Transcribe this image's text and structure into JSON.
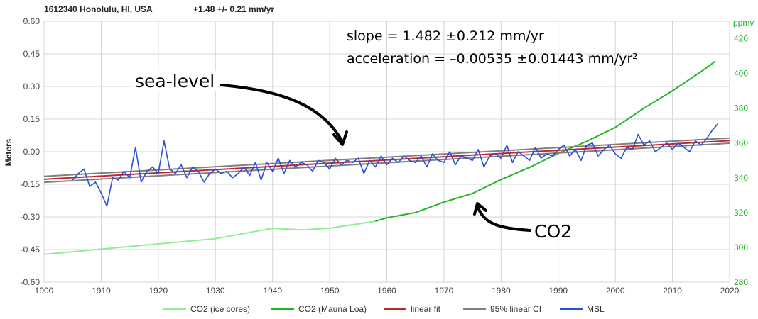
{
  "header": {
    "station": "1612340 Honolulu, HI, USA",
    "trend": "+1.48 +/- 0.21 mm/yr"
  },
  "annotations": {
    "slope": "slope = 1.482 ±0.212 mm/yr",
    "acceleration": "acceleration = –0.00535 ±0.01443 mm/yr²",
    "sea_level": "sea-level",
    "co2": "CO2"
  },
  "legend": [
    {
      "label": "CO2 (ice cores)",
      "color": "#90ee90"
    },
    {
      "label": "CO2 (Mauna Loa)",
      "color": "#22b822"
    },
    {
      "label": "linear fit",
      "color": "#c0282d"
    },
    {
      "label": "95% linear CI",
      "color": "#808080"
    },
    {
      "label": "MSL",
      "color": "#2a4fd8"
    }
  ],
  "chart_data": {
    "type": "line",
    "xlabel": "",
    "ylabel": "Meters",
    "y2label": "ppmv",
    "xlim": [
      1900,
      2020
    ],
    "ylim": [
      -0.6,
      0.6
    ],
    "y2lim": [
      280,
      430
    ],
    "xticks": [
      "1900",
      "1910",
      "1920",
      "1930",
      "1940",
      "1950",
      "1960",
      "1970",
      "1980",
      "1990",
      "2000",
      "2010",
      "2020"
    ],
    "yticks": [
      "0.60",
      "0.45",
      "0.30",
      "0.15",
      "0.00",
      "-0.15",
      "-0.30",
      "-0.45",
      "-0.60"
    ],
    "y2ticks": [
      "280",
      "300",
      "320",
      "340",
      "360",
      "380",
      "400",
      "420"
    ],
    "grid": true,
    "legend_position": "bottom",
    "series": [
      {
        "name": "MSL",
        "axis": "left",
        "color": "#2a4fd8",
        "x": [
          1905.0,
          1906.0,
          1907.0,
          1908.0,
          1909.0,
          1910.0,
          1911.0,
          1912.0,
          1913.0,
          1914.0,
          1915.0,
          1916.0,
          1917.0,
          1918.0,
          1919.0,
          1920.0,
          1921.0,
          1922.0,
          1923.0,
          1924.0,
          1925.0,
          1926.0,
          1927.0,
          1928.0,
          1929.0,
          1930.0,
          1931.0,
          1932.0,
          1933.0,
          1934.0,
          1935.0,
          1936.0,
          1937.0,
          1938.0,
          1939.0,
          1940.0,
          1941.0,
          1942.0,
          1943.0,
          1944.0,
          1945.0,
          1946.0,
          1947.0,
          1948.0,
          1949.0,
          1950.0,
          1951.0,
          1952.0,
          1953.0,
          1954.0,
          1955.0,
          1956.0,
          1957.0,
          1958.0,
          1959.0,
          1960.0,
          1961.0,
          1962.0,
          1963.0,
          1964.0,
          1965.0,
          1966.0,
          1967.0,
          1968.0,
          1969.0,
          1970.0,
          1971.0,
          1972.0,
          1973.0,
          1974.0,
          1975.0,
          1976.0,
          1977.0,
          1978.0,
          1979.0,
          1980.0,
          1981.0,
          1982.0,
          1983.0,
          1984.0,
          1985.0,
          1986.0,
          1987.0,
          1988.0,
          1989.0,
          1990.0,
          1991.0,
          1992.0,
          1993.0,
          1994.0,
          1995.0,
          1996.0,
          1997.0,
          1998.0,
          1999.0,
          2000.0,
          2001.0,
          2002.0,
          2003.0,
          2004.0,
          2005.0,
          2006.0,
          2007.0,
          2008.0,
          2009.0,
          2010.0,
          2011.0,
          2012.0,
          2013.0,
          2014.0,
          2015.0,
          2016.0,
          2017.0,
          2018.0
        ],
        "y": [
          -0.13,
          -0.1,
          -0.08,
          -0.16,
          -0.14,
          -0.19,
          -0.25,
          -0.12,
          -0.13,
          -0.09,
          -0.12,
          0.02,
          -0.14,
          -0.09,
          -0.07,
          -0.1,
          0.05,
          -0.08,
          -0.1,
          -0.06,
          -0.12,
          -0.07,
          -0.09,
          -0.14,
          -0.1,
          -0.08,
          -0.1,
          -0.09,
          -0.12,
          -0.1,
          -0.07,
          -0.11,
          -0.05,
          -0.13,
          -0.05,
          -0.09,
          -0.03,
          -0.1,
          -0.04,
          -0.07,
          -0.05,
          -0.06,
          -0.09,
          -0.04,
          -0.05,
          -0.08,
          -0.03,
          -0.06,
          -0.04,
          -0.05,
          -0.03,
          -0.1,
          -0.04,
          -0.07,
          -0.02,
          -0.06,
          -0.03,
          -0.05,
          -0.02,
          -0.04,
          -0.05,
          -0.02,
          -0.07,
          -0.01,
          -0.04,
          -0.05,
          0.0,
          -0.06,
          -0.02,
          -0.03,
          -0.04,
          0.01,
          -0.07,
          -0.02,
          -0.01,
          -0.03,
          0.03,
          -0.05,
          0.0,
          -0.02,
          -0.04,
          0.02,
          -0.03,
          -0.01,
          -0.02,
          0.01,
          0.03,
          -0.02,
          0.01,
          -0.04,
          0.03,
          0.04,
          -0.02,
          0.01,
          0.03,
          -0.01,
          -0.03,
          0.02,
          0.01,
          0.08,
          0.03,
          0.05,
          0.0,
          0.02,
          0.04,
          0.01,
          0.04,
          0.02,
          0.0,
          0.05,
          0.03,
          0.06,
          0.1,
          0.13
        ]
      },
      {
        "name": "linear fit",
        "axis": "left",
        "color": "#c0282d",
        "x": [
          1900,
          2020
        ],
        "y": [
          -0.127,
          0.051
        ]
      },
      {
        "name": "95% linear CI",
        "axis": "left",
        "color": "#808080",
        "x": [
          1900,
          2020
        ],
        "y": [
          -0.113,
          0.063
        ],
        "y_lower": [
          -0.141,
          0.039
        ]
      },
      {
        "name": "CO2 (ice cores)",
        "axis": "right",
        "color": "#90ee90",
        "x": [
          1900,
          1910,
          1920,
          1930,
          1940,
          1945,
          1950,
          1958
        ],
        "y": [
          296,
          299,
          302,
          305,
          311,
          310,
          311,
          315
        ]
      },
      {
        "name": "CO2 (Mauna Loa)",
        "axis": "right",
        "color": "#22b822",
        "x": [
          1958,
          1960,
          1965,
          1970,
          1975,
          1980,
          1985,
          1990,
          1995,
          2000,
          2005,
          2010,
          2015,
          2017.5
        ],
        "y": [
          315,
          317,
          320,
          326,
          331,
          339,
          346,
          354,
          361,
          369,
          380,
          390,
          401,
          407
        ]
      }
    ]
  }
}
